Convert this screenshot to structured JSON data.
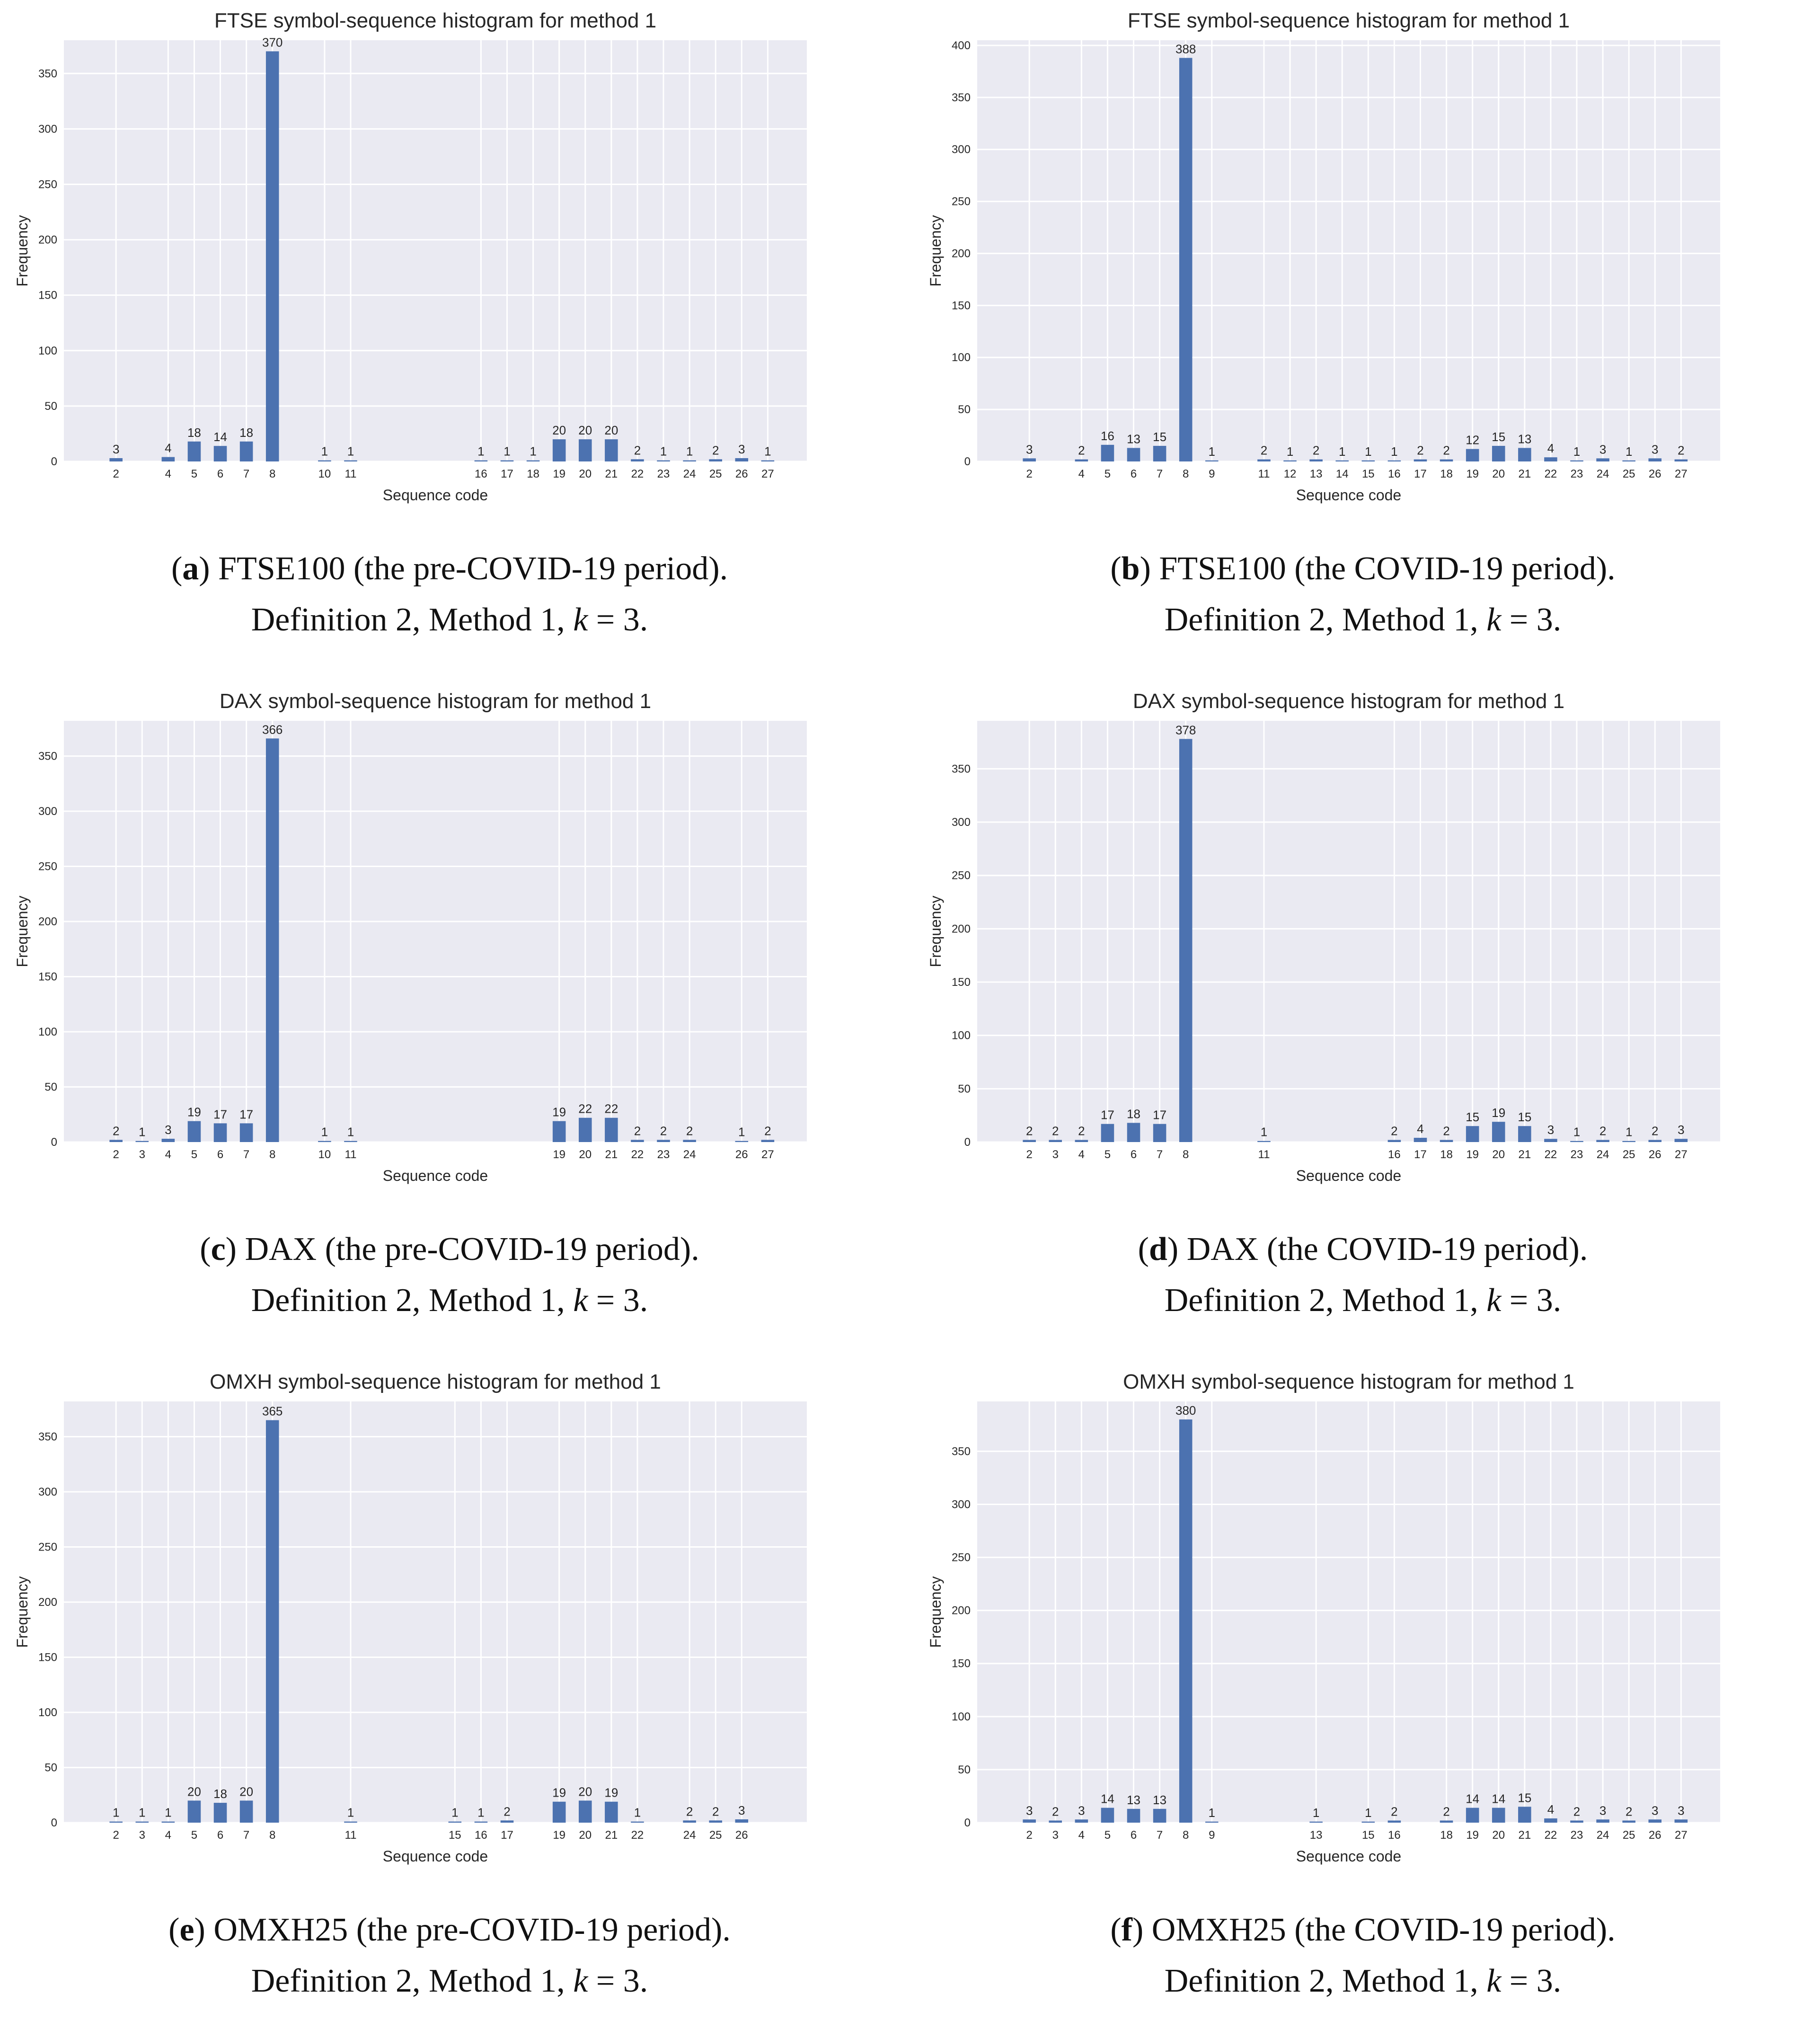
{
  "chart_data": [
    {
      "type": "bar",
      "title": "FTSE symbol-sequence histogram for method 1",
      "xlabel": "Sequence code",
      "ylabel": "Frequency",
      "ylim": [
        0,
        380
      ],
      "yticks": [
        0,
        50,
        100,
        150,
        200,
        250,
        300,
        350
      ],
      "categories": [
        "2",
        "4",
        "5",
        "6",
        "7",
        "8",
        "10",
        "11",
        "16",
        "17",
        "18",
        "19",
        "20",
        "21",
        "22",
        "23",
        "24",
        "25",
        "26",
        "27"
      ],
      "values": [
        3,
        4,
        18,
        14,
        18,
        370,
        1,
        1,
        1,
        1,
        1,
        20,
        20,
        20,
        2,
        1,
        1,
        2,
        3,
        1
      ],
      "caption": {
        "letter": "a",
        "line1": ") FTSE100 (the pre-COVID-19 period).",
        "line2_pre": "Definition 2, Method 1, ",
        "k": "k",
        "line2_post": " = 3."
      }
    },
    {
      "type": "bar",
      "title": "FTSE symbol-sequence histogram for method 1",
      "xlabel": "Sequence code",
      "ylabel": "Frequency",
      "ylim": [
        0,
        405
      ],
      "yticks": [
        0,
        50,
        100,
        150,
        200,
        250,
        300,
        350,
        400
      ],
      "categories": [
        "2",
        "4",
        "5",
        "6",
        "7",
        "8",
        "9",
        "11",
        "12",
        "13",
        "14",
        "15",
        "16",
        "17",
        "18",
        "19",
        "20",
        "21",
        "22",
        "23",
        "24",
        "25",
        "26",
        "27"
      ],
      "values": [
        3,
        2,
        16,
        13,
        15,
        388,
        1,
        2,
        1,
        2,
        1,
        1,
        1,
        2,
        2,
        12,
        15,
        13,
        4,
        1,
        3,
        1,
        3,
        2
      ],
      "caption": {
        "letter": "b",
        "line1": ") FTSE100 (the COVID-19 period).",
        "line2_pre": "Definition 2, Method 1, ",
        "k": "k",
        "line2_post": " = 3."
      }
    },
    {
      "type": "bar",
      "title": "DAX symbol-sequence histogram for method 1",
      "xlabel": "Sequence code",
      "ylabel": "Frequency",
      "ylim": [
        0,
        382
      ],
      "yticks": [
        0,
        50,
        100,
        150,
        200,
        250,
        300,
        350
      ],
      "categories": [
        "2",
        "3",
        "4",
        "5",
        "6",
        "7",
        "8",
        "10",
        "11",
        "19",
        "20",
        "21",
        "22",
        "23",
        "24",
        "26",
        "27"
      ],
      "values": [
        2,
        1,
        3,
        19,
        17,
        17,
        366,
        1,
        1,
        19,
        22,
        22,
        2,
        2,
        2,
        1,
        2
      ],
      "caption": {
        "letter": "c",
        "line1": ") DAX (the pre-COVID-19 period).",
        "line2_pre": "Definition 2, Method 1, ",
        "k": "k",
        "line2_post": " = 3."
      }
    },
    {
      "type": "bar",
      "title": "DAX symbol-sequence histogram for method 1",
      "xlabel": "Sequence code",
      "ylabel": "Frequency",
      "ylim": [
        0,
        395
      ],
      "yticks": [
        0,
        50,
        100,
        150,
        200,
        250,
        300,
        350
      ],
      "categories": [
        "2",
        "3",
        "4",
        "5",
        "6",
        "7",
        "8",
        "11",
        "16",
        "17",
        "18",
        "19",
        "20",
        "21",
        "22",
        "23",
        "24",
        "25",
        "26",
        "27"
      ],
      "values": [
        2,
        2,
        2,
        17,
        18,
        17,
        378,
        1,
        2,
        4,
        2,
        15,
        19,
        15,
        3,
        1,
        2,
        1,
        2,
        3
      ],
      "caption": {
        "letter": "d",
        "line1": ") DAX (the COVID-19 period).",
        "line2_pre": "Definition 2, Method 1, ",
        "k": "k",
        "line2_post": " = 3."
      }
    },
    {
      "type": "bar",
      "title": "OMXH symbol-sequence histogram for method 1",
      "xlabel": "Sequence code",
      "ylabel": "Frequency",
      "ylim": [
        0,
        382
      ],
      "yticks": [
        0,
        50,
        100,
        150,
        200,
        250,
        300,
        350
      ],
      "categories": [
        "2",
        "3",
        "4",
        "5",
        "6",
        "7",
        "8",
        "11",
        "15",
        "16",
        "17",
        "19",
        "20",
        "21",
        "22",
        "24",
        "25",
        "26"
      ],
      "values": [
        1,
        1,
        1,
        20,
        18,
        20,
        365,
        1,
        1,
        1,
        2,
        19,
        20,
        19,
        1,
        2,
        2,
        3
      ],
      "caption": {
        "letter": "e",
        "line1": ") OMXH25 (the pre-COVID-19 period).",
        "line2_pre": "Definition 2, Method 1, ",
        "k": "k",
        "line2_post": " = 3."
      }
    },
    {
      "type": "bar",
      "title": "OMXH symbol-sequence histogram for method 1",
      "xlabel": "Sequence code",
      "ylabel": "Frequency",
      "ylim": [
        0,
        397
      ],
      "yticks": [
        0,
        50,
        100,
        150,
        200,
        250,
        300,
        350
      ],
      "categories": [
        "2",
        "3",
        "4",
        "5",
        "6",
        "7",
        "8",
        "9",
        "13",
        "15",
        "16",
        "18",
        "19",
        "20",
        "21",
        "22",
        "23",
        "24",
        "25",
        "26",
        "27"
      ],
      "values": [
        3,
        2,
        3,
        14,
        13,
        13,
        380,
        1,
        1,
        1,
        2,
        2,
        14,
        14,
        15,
        4,
        2,
        3,
        2,
        3,
        3
      ],
      "caption": {
        "letter": "f",
        "line1": ") OMXH25 (the COVID-19 period).",
        "line2_pre": "Definition 2, Method 1, ",
        "k": "k",
        "line2_post": " = 3."
      }
    }
  ]
}
